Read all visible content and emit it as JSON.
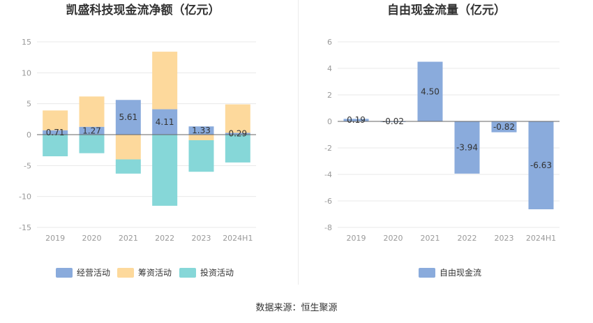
{
  "source": "数据来源：恒生聚源",
  "colors": {
    "operating": "#8aabdc",
    "financing": "#fdd99c",
    "investing": "#86d7d8",
    "free_cash_flow": "#8aabdc",
    "grid": "#e8e8e8",
    "axis_label": "#999999",
    "zero_line": "#666666"
  },
  "chart_data": [
    {
      "type": "bar",
      "stacked": true,
      "title": "凯盛科技现金流净额（亿元）",
      "categories": [
        "2019",
        "2020",
        "2021",
        "2022",
        "2023",
        "2024H1"
      ],
      "ylim": [
        -15,
        15
      ],
      "yticks": [
        15,
        10,
        5,
        0,
        -5,
        -10,
        -15
      ],
      "series": [
        {
          "name": "经营活动",
          "key": "operating",
          "values": [
            0.71,
            1.27,
            5.61,
            4.11,
            1.33,
            0.29
          ]
        },
        {
          "name": "筹资活动",
          "key": "financing",
          "values": [
            3.2,
            4.9,
            -4.0,
            9.3,
            -0.9,
            4.6
          ]
        },
        {
          "name": "投资活动",
          "key": "investing",
          "values": [
            -3.5,
            -3.0,
            -2.3,
            -11.5,
            -5.1,
            -4.5
          ]
        }
      ],
      "data_labels": [
        "0.71",
        "1.27",
        "5.61",
        "4.11",
        "1.33",
        "0.29"
      ],
      "grid": true,
      "legend": "bottom"
    },
    {
      "type": "bar",
      "waterfall": true,
      "title": "自由现金流量（亿元）",
      "categories": [
        "2019",
        "2020",
        "2021",
        "2022",
        "2023",
        "2024H1"
      ],
      "ylim": [
        -8,
        6
      ],
      "yticks": [
        6,
        4,
        2,
        0,
        -2,
        -4,
        -6,
        -8
      ],
      "series": [
        {
          "name": "自由现金流",
          "key": "free_cash_flow",
          "values": [
            0.19,
            -0.02,
            4.5,
            -3.94,
            -0.82,
            -6.63
          ]
        }
      ],
      "data_labels": [
        "0.19",
        "-0.02",
        "4.50",
        "-3.94",
        "-0.82",
        "-6.63"
      ],
      "grid": true,
      "legend": "bottom"
    }
  ]
}
